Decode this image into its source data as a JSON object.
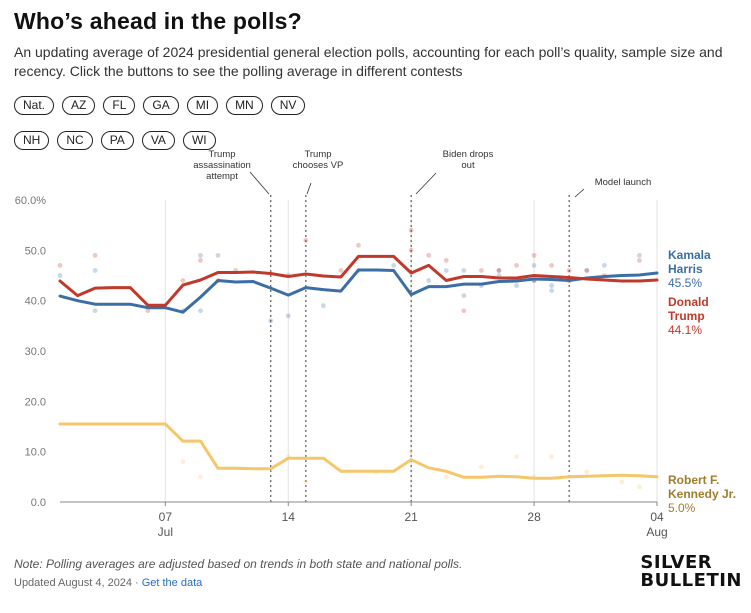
{
  "title": "Who’s ahead in the polls?",
  "subtitle": "An updating average of 2024 presidential general election polls, accounting for each poll’s quality, sample size and recency. Click the buttons to see the polling average in different contests",
  "buttons_row1": [
    "Nat.",
    "AZ",
    "FL",
    "GA",
    "MI",
    "MN",
    "NV"
  ],
  "buttons_row2": [
    "NH",
    "NC",
    "PA",
    "VA",
    "WI"
  ],
  "note": "Note: Polling averages are adjusted based on trends in both state and national polls.",
  "updated": "Updated August 4, 2024",
  "separator": "·",
  "data_link": "Get the data",
  "logo_line1": "SILVER",
  "logo_line2": "BULLETIN",
  "chart_data": {
    "type": "line",
    "x_start": "2024-07-01",
    "x_end": "2024-08-04",
    "xlim": [
      "2024-07-01",
      "2024-08-04"
    ],
    "ylim": [
      0,
      60
    ],
    "y_ticks": [
      "0.0",
      "10.0",
      "20.0",
      "30.0",
      "40.0",
      "50.0",
      "60.0%"
    ],
    "y_tick_values": [
      0,
      10,
      20,
      30,
      40,
      50,
      60
    ],
    "x_ticks": [
      {
        "date": "2024-07-07",
        "label": "07",
        "sub": "Jul"
      },
      {
        "date": "2024-07-14",
        "label": "14",
        "sub": ""
      },
      {
        "date": "2024-07-21",
        "label": "21",
        "sub": ""
      },
      {
        "date": "2024-07-28",
        "label": "28",
        "sub": ""
      },
      {
        "date": "2024-08-04",
        "label": "04",
        "sub": "Aug"
      }
    ],
    "grid": "vertical dashed lines at week ticks",
    "annotations": [
      {
        "date": "2024-07-13",
        "label_lines": [
          "Trump",
          "assassination",
          "attempt"
        ]
      },
      {
        "date": "2024-07-15",
        "label_lines": [
          "Trump",
          "chooses VP"
        ]
      },
      {
        "date": "2024-07-21",
        "label_lines": [
          "Biden drops",
          "out"
        ]
      },
      {
        "date": "2024-07-30",
        "label_lines": [
          "Model launch"
        ]
      }
    ],
    "series": [
      {
        "name_lines": [
          "Kamala",
          "Harris"
        ],
        "final_label": "45.5%",
        "color": "#3c6ea6",
        "points": [
          [
            "2024-07-01",
            40.9
          ],
          [
            "2024-07-02",
            40.0
          ],
          [
            "2024-07-03",
            39.3
          ],
          [
            "2024-07-04",
            39.3
          ],
          [
            "2024-07-05",
            39.3
          ],
          [
            "2024-07-06",
            38.6
          ],
          [
            "2024-07-07",
            38.6
          ],
          [
            "2024-07-08",
            37.7
          ],
          [
            "2024-07-09",
            40.7
          ],
          [
            "2024-07-10",
            44.0
          ],
          [
            "2024-07-11",
            43.7
          ],
          [
            "2024-07-12",
            43.8
          ],
          [
            "2024-07-13",
            42.5
          ],
          [
            "2024-07-14",
            41.1
          ],
          [
            "2024-07-15",
            42.6
          ],
          [
            "2024-07-16",
            42.2
          ],
          [
            "2024-07-17",
            41.9
          ],
          [
            "2024-07-18",
            46.1
          ],
          [
            "2024-07-19",
            46.1
          ],
          [
            "2024-07-20",
            46.0
          ],
          [
            "2024-07-21",
            41.2
          ],
          [
            "2024-07-22",
            42.8
          ],
          [
            "2024-07-23",
            42.8
          ],
          [
            "2024-07-24",
            43.3
          ],
          [
            "2024-07-25",
            43.3
          ],
          [
            "2024-07-26",
            43.8
          ],
          [
            "2024-07-27",
            43.9
          ],
          [
            "2024-07-28",
            44.3
          ],
          [
            "2024-07-29",
            44.2
          ],
          [
            "2024-07-30",
            44.0
          ],
          [
            "2024-07-31",
            44.5
          ],
          [
            "2024-08-01",
            44.8
          ],
          [
            "2024-08-02",
            45.0
          ],
          [
            "2024-08-03",
            45.1
          ],
          [
            "2024-08-04",
            45.5
          ]
        ]
      },
      {
        "name_lines": [
          "Donald",
          "Trump"
        ],
        "final_label": "44.1%",
        "color": "#c0392b",
        "points": [
          [
            "2024-07-01",
            43.9
          ],
          [
            "2024-07-02",
            41.0
          ],
          [
            "2024-07-03",
            42.5
          ],
          [
            "2024-07-04",
            42.6
          ],
          [
            "2024-07-05",
            42.6
          ],
          [
            "2024-07-06",
            39.1
          ],
          [
            "2024-07-07",
            39.1
          ],
          [
            "2024-07-08",
            43.1
          ],
          [
            "2024-07-09",
            44.1
          ],
          [
            "2024-07-10",
            45.6
          ],
          [
            "2024-07-11",
            45.6
          ],
          [
            "2024-07-12",
            45.7
          ],
          [
            "2024-07-13",
            45.4
          ],
          [
            "2024-07-14",
            44.8
          ],
          [
            "2024-07-15",
            45.3
          ],
          [
            "2024-07-16",
            44.9
          ],
          [
            "2024-07-17",
            44.7
          ],
          [
            "2024-07-18",
            48.8
          ],
          [
            "2024-07-19",
            48.8
          ],
          [
            "2024-07-20",
            48.8
          ],
          [
            "2024-07-21",
            45.5
          ],
          [
            "2024-07-22",
            47.0
          ],
          [
            "2024-07-23",
            44.0
          ],
          [
            "2024-07-24",
            44.8
          ],
          [
            "2024-07-25",
            44.8
          ],
          [
            "2024-07-26",
            44.5
          ],
          [
            "2024-07-27",
            44.5
          ],
          [
            "2024-07-28",
            45.0
          ],
          [
            "2024-07-29",
            44.8
          ],
          [
            "2024-07-30",
            44.6
          ],
          [
            "2024-07-31",
            44.3
          ],
          [
            "2024-08-01",
            44.1
          ],
          [
            "2024-08-02",
            43.9
          ],
          [
            "2024-08-03",
            43.9
          ],
          [
            "2024-08-04",
            44.1
          ]
        ]
      },
      {
        "name_lines": [
          "Robert F.",
          "Kennedy Jr."
        ],
        "final_label": "5.0%",
        "color": "#f5c76a",
        "points": [
          [
            "2024-07-01",
            15.5
          ],
          [
            "2024-07-02",
            15.5
          ],
          [
            "2024-07-03",
            15.5
          ],
          [
            "2024-07-04",
            15.5
          ],
          [
            "2024-07-05",
            15.5
          ],
          [
            "2024-07-06",
            15.5
          ],
          [
            "2024-07-07",
            15.5
          ],
          [
            "2024-07-08",
            12.1
          ],
          [
            "2024-07-09",
            12.1
          ],
          [
            "2024-07-10",
            6.7
          ],
          [
            "2024-07-11",
            6.7
          ],
          [
            "2024-07-12",
            6.6
          ],
          [
            "2024-07-13",
            6.6
          ],
          [
            "2024-07-14",
            8.7
          ],
          [
            "2024-07-15",
            8.7
          ],
          [
            "2024-07-16",
            8.7
          ],
          [
            "2024-07-17",
            6.1
          ],
          [
            "2024-07-18",
            6.1
          ],
          [
            "2024-07-19",
            6.1
          ],
          [
            "2024-07-20",
            6.1
          ],
          [
            "2024-07-21",
            8.4
          ],
          [
            "2024-07-22",
            6.8
          ],
          [
            "2024-07-23",
            6.1
          ],
          [
            "2024-07-24",
            4.9
          ],
          [
            "2024-07-25",
            4.9
          ],
          [
            "2024-07-26",
            5.1
          ],
          [
            "2024-07-27",
            5.0
          ],
          [
            "2024-07-28",
            4.7
          ],
          [
            "2024-07-29",
            4.7
          ],
          [
            "2024-07-30",
            5.0
          ],
          [
            "2024-07-31",
            5.1
          ],
          [
            "2024-08-01",
            5.2
          ],
          [
            "2024-08-02",
            5.3
          ],
          [
            "2024-08-03",
            5.2
          ],
          [
            "2024-08-04",
            5.0
          ]
        ]
      }
    ],
    "polls": [
      {
        "series": 0,
        "points": [
          [
            "2024-07-01",
            45
          ],
          [
            "2024-07-03",
            38
          ],
          [
            "2024-07-03",
            46
          ],
          [
            "2024-07-08",
            38
          ],
          [
            "2024-07-09",
            49
          ],
          [
            "2024-07-09",
            38
          ],
          [
            "2024-07-10",
            49
          ],
          [
            "2024-07-13",
            36
          ],
          [
            "2024-07-14",
            37
          ],
          [
            "2024-07-16",
            39
          ],
          [
            "2024-07-18",
            46
          ],
          [
            "2024-07-20",
            47
          ],
          [
            "2024-07-22",
            44
          ],
          [
            "2024-07-23",
            46
          ],
          [
            "2024-07-24",
            46
          ],
          [
            "2024-07-24",
            41
          ],
          [
            "2024-07-25",
            43
          ],
          [
            "2024-07-26",
            45
          ],
          [
            "2024-07-26",
            46
          ],
          [
            "2024-07-27",
            43
          ],
          [
            "2024-07-28",
            47
          ],
          [
            "2024-07-28",
            44
          ],
          [
            "2024-07-29",
            43
          ],
          [
            "2024-07-29",
            42
          ],
          [
            "2024-07-30",
            44
          ],
          [
            "2024-07-31",
            46
          ],
          [
            "2024-08-01",
            47
          ],
          [
            "2024-08-03",
            49
          ]
        ]
      },
      {
        "series": 1,
        "points": [
          [
            "2024-07-01",
            47
          ],
          [
            "2024-07-03",
            49
          ],
          [
            "2024-07-06",
            38
          ],
          [
            "2024-07-08",
            44
          ],
          [
            "2024-07-09",
            48
          ],
          [
            "2024-07-10",
            44
          ],
          [
            "2024-07-11",
            46
          ],
          [
            "2024-07-14",
            45
          ],
          [
            "2024-07-15",
            52
          ],
          [
            "2024-07-17",
            46
          ],
          [
            "2024-07-18",
            51
          ],
          [
            "2024-07-21",
            54
          ],
          [
            "2024-07-21",
            50
          ],
          [
            "2024-07-22",
            49
          ],
          [
            "2024-07-23",
            48
          ],
          [
            "2024-07-24",
            38
          ],
          [
            "2024-07-25",
            46
          ],
          [
            "2024-07-26",
            46
          ],
          [
            "2024-07-27",
            47
          ],
          [
            "2024-07-28",
            49
          ],
          [
            "2024-07-28",
            44
          ],
          [
            "2024-07-29",
            47
          ],
          [
            "2024-07-30",
            46
          ],
          [
            "2024-07-30",
            44
          ],
          [
            "2024-07-31",
            46
          ],
          [
            "2024-08-01",
            45
          ],
          [
            "2024-08-03",
            48
          ]
        ]
      },
      {
        "series": 2,
        "points": [
          [
            "2024-07-08",
            8
          ],
          [
            "2024-07-09",
            5
          ],
          [
            "2024-07-14",
            9
          ],
          [
            "2024-07-15",
            4
          ],
          [
            "2024-07-19",
            6
          ],
          [
            "2024-07-21",
            10
          ],
          [
            "2024-07-23",
            5
          ],
          [
            "2024-07-25",
            7
          ],
          [
            "2024-07-27",
            9
          ],
          [
            "2024-07-28",
            5
          ],
          [
            "2024-07-29",
            9
          ],
          [
            "2024-07-31",
            6
          ],
          [
            "2024-08-02",
            4
          ],
          [
            "2024-08-03",
            3
          ]
        ]
      }
    ]
  }
}
